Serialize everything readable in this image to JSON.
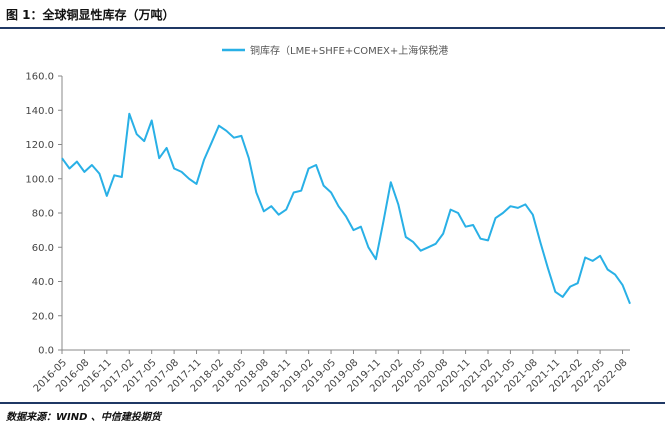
{
  "figure": {
    "title": "图 1：全球铜显性库存（万吨）",
    "source": "数据来源：WIND 、中信建投期货"
  },
  "colors": {
    "line": "#29b0e6",
    "axis": "#888888",
    "rule": "#1f3864"
  },
  "chart_data": {
    "type": "line",
    "title": "",
    "xlabel": "",
    "ylabel": "",
    "ylim": [
      0,
      160
    ],
    "yticks": [
      "0.0",
      "20.0",
      "40.0",
      "60.0",
      "80.0",
      "100.0",
      "120.0",
      "140.0",
      "160.0"
    ],
    "grid": false,
    "legend": "top-center",
    "xticks": [
      "2016-05",
      "2016-08",
      "2016-11",
      "2017-02",
      "2017-05",
      "2017-08",
      "2017-11",
      "2018-02",
      "2018-05",
      "2018-08",
      "2018-11",
      "2019-02",
      "2019-05",
      "2019-08",
      "2019-11",
      "2020-02",
      "2020-05",
      "2020-08",
      "2020-11",
      "2021-02",
      "2021-05",
      "2021-08",
      "2021-11",
      "2022-02",
      "2022-05",
      "2022-08"
    ],
    "series": [
      {
        "name": "铜库存（LME+SHFE+COMEX+上海保税港",
        "x": [
          "2016-05",
          "2016-06",
          "2016-07",
          "2016-08",
          "2016-09",
          "2016-10",
          "2016-11",
          "2016-12",
          "2017-01",
          "2017-02",
          "2017-03",
          "2017-04",
          "2017-05",
          "2017-06",
          "2017-07",
          "2017-08",
          "2017-09",
          "2017-10",
          "2017-11",
          "2017-12",
          "2018-01",
          "2018-02",
          "2018-03",
          "2018-04",
          "2018-05",
          "2018-06",
          "2018-07",
          "2018-08",
          "2018-09",
          "2018-10",
          "2018-11",
          "2018-12",
          "2019-01",
          "2019-02",
          "2019-03",
          "2019-04",
          "2019-05",
          "2019-06",
          "2019-07",
          "2019-08",
          "2019-09",
          "2019-10",
          "2019-11",
          "2019-12",
          "2020-01",
          "2020-02",
          "2020-03",
          "2020-04",
          "2020-05",
          "2020-06",
          "2020-07",
          "2020-08",
          "2020-09",
          "2020-10",
          "2020-11",
          "2020-12",
          "2021-01",
          "2021-02",
          "2021-03",
          "2021-04",
          "2021-05",
          "2021-06",
          "2021-07",
          "2021-08",
          "2021-09",
          "2021-10",
          "2021-11",
          "2021-12",
          "2022-01",
          "2022-02",
          "2022-03",
          "2022-04",
          "2022-05",
          "2022-06",
          "2022-07",
          "2022-08",
          "2022-09"
        ],
        "values": [
          112,
          106,
          110,
          104,
          108,
          103,
          90,
          102,
          101,
          138,
          126,
          122,
          134,
          112,
          118,
          106,
          104,
          100,
          97,
          111,
          121,
          131,
          128,
          124,
          125,
          112,
          92,
          81,
          84,
          79,
          82,
          92,
          93,
          106,
          108,
          96,
          92,
          84,
          78,
          70,
          72,
          60,
          53,
          75,
          98,
          85,
          66,
          63,
          58,
          60,
          62,
          68,
          82,
          80,
          72,
          73,
          65,
          64,
          77,
          80,
          84,
          83,
          85,
          79,
          63,
          48,
          34,
          31,
          37,
          39,
          54,
          52,
          55,
          47,
          44,
          38,
          27
        ]
      }
    ]
  }
}
